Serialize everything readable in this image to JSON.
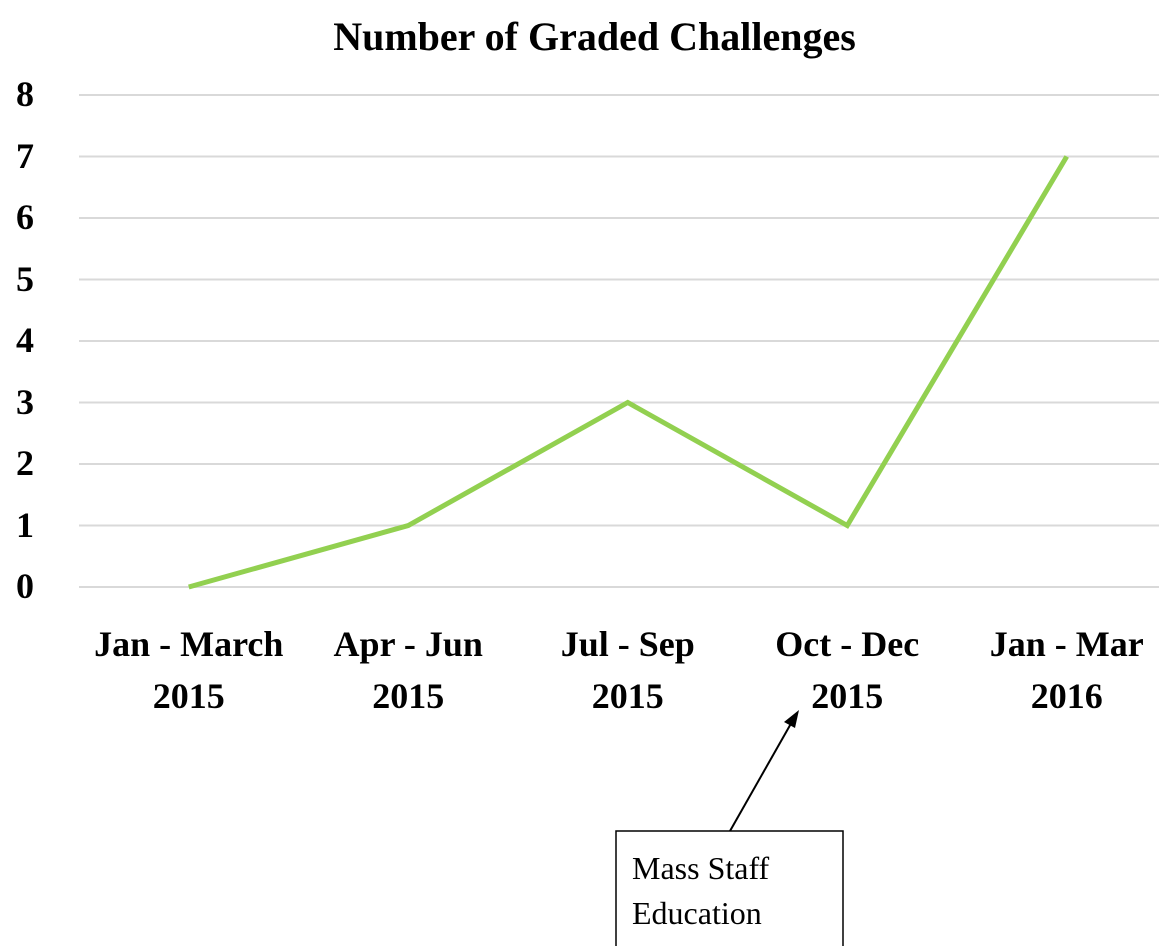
{
  "chart_data": {
    "type": "line",
    "title": "Number of Graded Challenges",
    "categories": [
      "Jan - March 2015",
      "Apr - Jun 2015",
      "Jul - Sep 2015",
      "Oct - Dec 2015",
      "Jan - Mar 2016"
    ],
    "values": [
      0,
      1,
      3,
      1,
      7
    ],
    "color": "#92d050",
    "ylim": [
      0,
      8
    ],
    "yticks": [
      0,
      1,
      2,
      3,
      4,
      5,
      6,
      7,
      8
    ],
    "grid": true,
    "annotation": "Mass Staff Education"
  }
}
